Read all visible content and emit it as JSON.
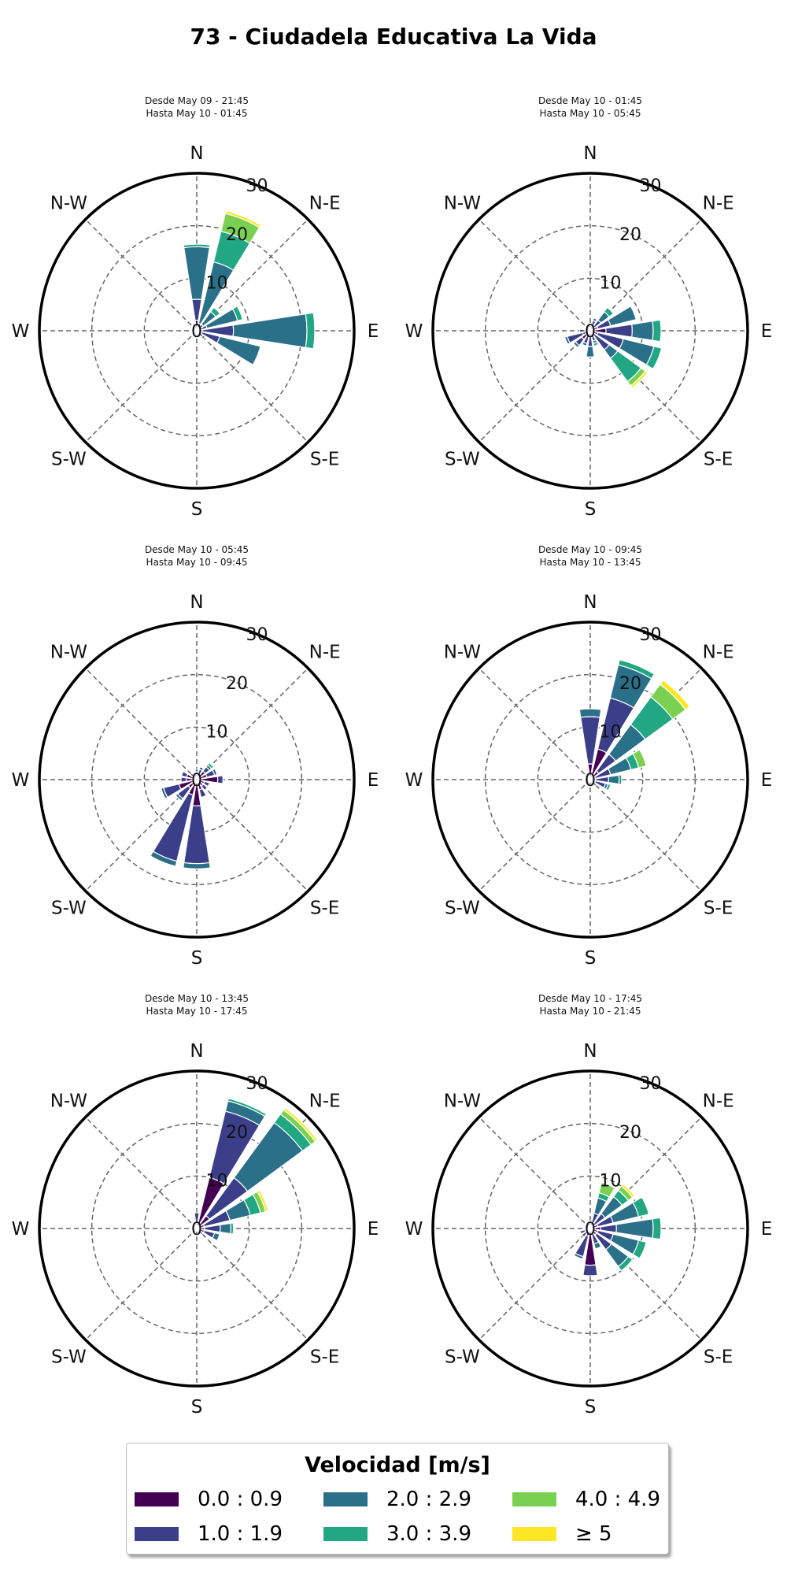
{
  "title": "73 - Ciudadela Educativa La Vida",
  "direction_labels": [
    "N",
    "N-E",
    "E",
    "S-E",
    "S",
    "S-W",
    "W",
    "N-W"
  ],
  "radial_ticks": [
    "0",
    "10",
    "20",
    "30"
  ],
  "legend": {
    "title": "Velocidad [m/s]",
    "items": [
      {
        "label": "0.0 : 0.9",
        "color": "#440154"
      },
      {
        "label": "1.0 : 1.9",
        "color": "#3b3f8a"
      },
      {
        "label": "2.0 : 2.9",
        "color": "#2b7089"
      },
      {
        "label": "3.0 : 3.9",
        "color": "#22a784"
      },
      {
        "label": "4.0 : 4.9",
        "color": "#7ad151"
      },
      {
        "label": "≥  5",
        "color": "#fde725"
      }
    ]
  },
  "chart_data": [
    {
      "type": "windrose",
      "title_line1": "Desde May 09 - 21:45",
      "title_line2": "Hasta May 10 - 01:45",
      "rmax": 30,
      "rticks": [
        0,
        10,
        20,
        30
      ],
      "directions_deg": [
        0,
        22.5,
        45,
        67.5,
        90,
        112.5,
        135,
        157.5,
        180,
        202.5,
        225,
        247.5,
        270,
        292.5,
        315,
        337.5
      ],
      "stacks": [
        [
          2,
          4,
          10,
          0.5,
          0,
          0
        ],
        [
          0.5,
          1,
          12,
          6,
          3.5,
          0.5
        ],
        [
          0.5,
          1,
          3,
          1,
          0,
          0
        ],
        [
          0.5,
          1.5,
          6,
          1,
          0,
          0
        ],
        [
          1,
          6,
          14,
          1.5,
          0,
          0
        ],
        [
          1,
          3.5,
          8,
          0,
          0,
          0
        ],
        [
          0.5,
          1,
          0.5,
          0,
          0,
          0
        ],
        [
          0.5,
          0.5,
          0,
          0,
          0,
          0
        ],
        [
          0.5,
          0.5,
          0,
          0,
          0,
          0
        ],
        [
          0.5,
          0.5,
          0,
          0,
          0,
          0
        ],
        [
          0.5,
          0,
          0,
          0,
          0,
          0
        ],
        [
          0.5,
          0,
          0,
          0,
          0,
          0
        ],
        [
          0.5,
          0.5,
          0,
          0,
          0,
          0
        ],
        [
          0.5,
          0,
          0,
          0,
          0,
          0
        ],
        [
          0.5,
          0,
          0,
          0,
          0,
          0
        ],
        [
          0.5,
          0.5,
          0,
          0,
          0,
          0
        ]
      ]
    },
    {
      "type": "windrose",
      "title_line1": "Desde May 10 - 01:45",
      "title_line2": "Hasta May 10 - 05:45",
      "rmax": 30,
      "rticks": [
        0,
        10,
        20,
        30
      ],
      "directions_deg": [
        0,
        22.5,
        45,
        67.5,
        90,
        112.5,
        135,
        157.5,
        180,
        202.5,
        225,
        247.5,
        270,
        292.5,
        315,
        337.5
      ],
      "stacks": [
        [
          0.5,
          0.5,
          0,
          0,
          0,
          0
        ],
        [
          1,
          1,
          0.5,
          0,
          0,
          0
        ],
        [
          1,
          1.5,
          2,
          1,
          0,
          0
        ],
        [
          1.5,
          2.5,
          5,
          0,
          0,
          0
        ],
        [
          3,
          5,
          4,
          1.5,
          0,
          0
        ],
        [
          1.5,
          5,
          6,
          1.5,
          0,
          0
        ],
        [
          0.5,
          4,
          2,
          5.5,
          1,
          0.5
        ],
        [
          1,
          1,
          0.5,
          0.5,
          0,
          0
        ],
        [
          1,
          2,
          2,
          0,
          0,
          0
        ],
        [
          1,
          1.5,
          0.5,
          0,
          0,
          0
        ],
        [
          2,
          1.5,
          0.5,
          0,
          0,
          0
        ],
        [
          1.5,
          3,
          0.5,
          0,
          0,
          0
        ],
        [
          1,
          1,
          0,
          0,
          0,
          0
        ],
        [
          0.5,
          0.5,
          0,
          0,
          0,
          0
        ],
        [
          0.5,
          0.5,
          0,
          0,
          0,
          0
        ],
        [
          0.5,
          0.5,
          0,
          0,
          0,
          0
        ]
      ]
    },
    {
      "type": "windrose",
      "title_line1": "Desde May 10 - 05:45",
      "title_line2": "Hasta May 10 - 09:45",
      "rmax": 30,
      "rticks": [
        0,
        10,
        20,
        30
      ],
      "directions_deg": [
        0,
        22.5,
        45,
        67.5,
        90,
        112.5,
        135,
        157.5,
        180,
        202.5,
        225,
        247.5,
        270,
        292.5,
        315,
        337.5
      ],
      "stacks": [
        [
          1,
          0.5,
          0.5,
          0,
          0,
          0
        ],
        [
          1,
          1,
          0.5,
          0,
          0,
          0
        ],
        [
          2,
          1,
          0.5,
          0.5,
          0,
          0
        ],
        [
          2,
          1.5,
          0.5,
          0,
          0,
          0
        ],
        [
          4,
          1,
          0,
          0,
          0,
          0
        ],
        [
          1.5,
          1,
          0,
          0,
          0,
          0
        ],
        [
          1.5,
          1,
          0,
          0,
          0,
          0
        ],
        [
          2,
          1.5,
          0,
          0,
          0,
          0
        ],
        [
          5,
          11,
          1,
          0,
          0,
          0
        ],
        [
          3,
          13,
          1,
          0,
          0,
          0
        ],
        [
          2,
          2.5,
          0.5,
          0,
          0,
          0
        ],
        [
          3.5,
          3,
          0.5,
          0,
          0,
          0
        ],
        [
          2,
          1,
          0,
          0,
          0,
          0
        ],
        [
          2,
          1,
          0,
          0,
          0,
          0
        ],
        [
          1,
          0.5,
          0,
          0,
          0,
          0
        ],
        [
          0.5,
          0.5,
          0,
          0,
          0,
          0
        ]
      ]
    },
    {
      "type": "windrose",
      "title_line1": "Desde May 10 - 09:45",
      "title_line2": "Hasta May 10 - 13:45",
      "rmax": 30,
      "rticks": [
        0,
        10,
        20,
        30
      ],
      "directions_deg": [
        0,
        22.5,
        45,
        67.5,
        90,
        112.5,
        135,
        157.5,
        180,
        202.5,
        225,
        247.5,
        270,
        292.5,
        315,
        337.5
      ],
      "stacks": [
        [
          3,
          9,
          1.5,
          0,
          0,
          0
        ],
        [
          6,
          10,
          6.5,
          1,
          0,
          0
        ],
        [
          2,
          4,
          7,
          6.5,
          3,
          1
        ],
        [
          1,
          3,
          4,
          1.5,
          1.5,
          0
        ],
        [
          1,
          2.5,
          2,
          0.5,
          0,
          0
        ],
        [
          1,
          2,
          0.5,
          0.5,
          0,
          0
        ],
        [
          0.5,
          1,
          0,
          0,
          0,
          0
        ],
        [
          0.5,
          0.5,
          0,
          0,
          0,
          0
        ],
        [
          0.5,
          0,
          0,
          0,
          0,
          0
        ],
        [
          0.5,
          0,
          0,
          0,
          0,
          0
        ],
        [
          0.5,
          0,
          0,
          0,
          0,
          0
        ],
        [
          0.5,
          0.5,
          0,
          0,
          0,
          0
        ],
        [
          0.5,
          0,
          0,
          0,
          0,
          0
        ],
        [
          0.5,
          0.5,
          0,
          0,
          0,
          0
        ],
        [
          0.5,
          0.5,
          0,
          0,
          0,
          0
        ],
        [
          0.5,
          0.5,
          0,
          0,
          0,
          0
        ]
      ]
    },
    {
      "type": "windrose",
      "title_line1": "Desde May 10 - 13:45",
      "title_line2": "Hasta May 10 - 17:45",
      "rmax": 30,
      "rticks": [
        0,
        10,
        20,
        30
      ],
      "directions_deg": [
        0,
        22.5,
        45,
        67.5,
        90,
        112.5,
        135,
        157.5,
        180,
        202.5,
        225,
        247.5,
        270,
        292.5,
        315,
        337.5
      ],
      "stacks": [
        [
          1,
          2,
          0,
          0,
          0,
          0
        ],
        [
          10,
          13,
          2,
          0.5,
          0,
          0
        ],
        [
          3,
          9,
          13,
          2,
          1,
          0.5
        ],
        [
          1.5,
          5,
          4,
          2,
          1,
          0.5
        ],
        [
          1.5,
          3,
          2,
          0.5,
          0,
          0
        ],
        [
          1.5,
          2,
          1,
          0,
          0,
          0
        ],
        [
          0.5,
          0.5,
          0.5,
          0,
          0,
          0
        ],
        [
          0.5,
          0.5,
          0,
          0,
          0,
          0
        ],
        [
          0.5,
          0,
          0,
          0,
          0,
          0
        ],
        [
          0.5,
          0,
          0,
          0,
          0,
          0
        ],
        [
          0.5,
          0,
          0,
          0,
          0,
          0
        ],
        [
          0.5,
          0,
          0,
          0,
          0,
          0
        ],
        [
          0.5,
          0,
          0,
          0,
          0,
          0
        ],
        [
          0.5,
          0.5,
          0,
          0,
          0,
          0
        ],
        [
          0.5,
          0.5,
          0,
          0,
          0,
          0
        ],
        [
          0.5,
          0.5,
          0,
          0,
          0,
          0
        ]
      ]
    },
    {
      "type": "windrose",
      "title_line1": "Desde May 10 - 17:45",
      "title_line2": "Hasta May 10 - 21:45",
      "rmax": 30,
      "rticks": [
        0,
        10,
        20,
        30
      ],
      "directions_deg": [
        0,
        22.5,
        45,
        67.5,
        90,
        112.5,
        135,
        157.5,
        180,
        202.5,
        225,
        247.5,
        270,
        292.5,
        315,
        337.5
      ],
      "stacks": [
        [
          0.5,
          0.5,
          0,
          0,
          0,
          0
        ],
        [
          1,
          2,
          3,
          1,
          2,
          0
        ],
        [
          1,
          2.5,
          4,
          1.5,
          1,
          0.5
        ],
        [
          1.5,
          3,
          5,
          2,
          0,
          0
        ],
        [
          2,
          3,
          7,
          1.5,
          0,
          0
        ],
        [
          1.5,
          3,
          5,
          1.5,
          0,
          0
        ],
        [
          1.5,
          3.5,
          4,
          1,
          0,
          0
        ],
        [
          1,
          2,
          1,
          0,
          0,
          0
        ],
        [
          7,
          2,
          0,
          0,
          0,
          0
        ],
        [
          1.5,
          4,
          0.5,
          0,
          0,
          0
        ],
        [
          1,
          1,
          0,
          0,
          0,
          0
        ],
        [
          1,
          1,
          0,
          0,
          0,
          0
        ],
        [
          0.5,
          0.5,
          0,
          0,
          0,
          0
        ],
        [
          0.5,
          0.5,
          0,
          0,
          0,
          0
        ],
        [
          0.5,
          0.5,
          0,
          0,
          0,
          0
        ],
        [
          0.5,
          0.5,
          0,
          0,
          0,
          0
        ]
      ]
    }
  ]
}
